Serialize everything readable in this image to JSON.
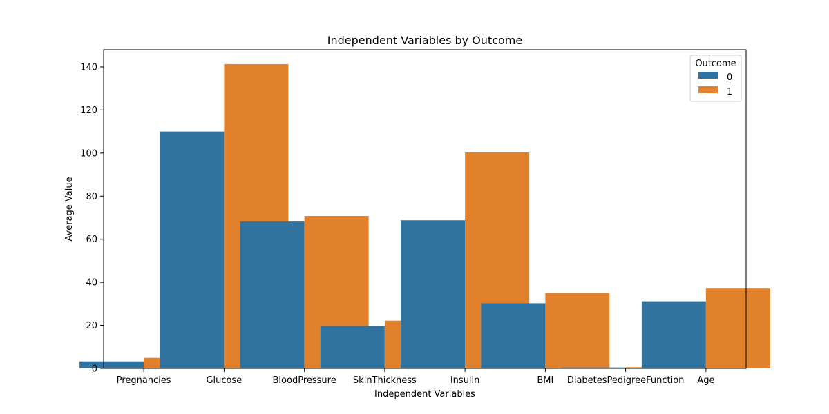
{
  "chart_data": {
    "type": "bar",
    "title": "Independent Variables by Outcome",
    "xlabel": "Independent Variables",
    "ylabel": "Average Value",
    "categories": [
      "Pregnancies",
      "Glucose",
      "BloodPressure",
      "SkinThickness",
      "Insulin",
      "BMI",
      "DiabetesPedigreeFunction",
      "Age"
    ],
    "series": [
      {
        "name": "0",
        "color": "#3274a1",
        "values": [
          3.3,
          110.0,
          68.2,
          19.7,
          68.8,
          30.3,
          0.43,
          31.2
        ]
      },
      {
        "name": "1",
        "color": "#e1812c",
        "values": [
          4.9,
          141.3,
          70.8,
          22.2,
          100.3,
          35.1,
          0.55,
          37.1
        ]
      }
    ],
    "ylim": [
      0,
      148
    ],
    "yticks": [
      0,
      20,
      40,
      60,
      80,
      100,
      120,
      140
    ],
    "grid": false,
    "legend": {
      "title": "Outcome",
      "placement": "top-right"
    }
  }
}
